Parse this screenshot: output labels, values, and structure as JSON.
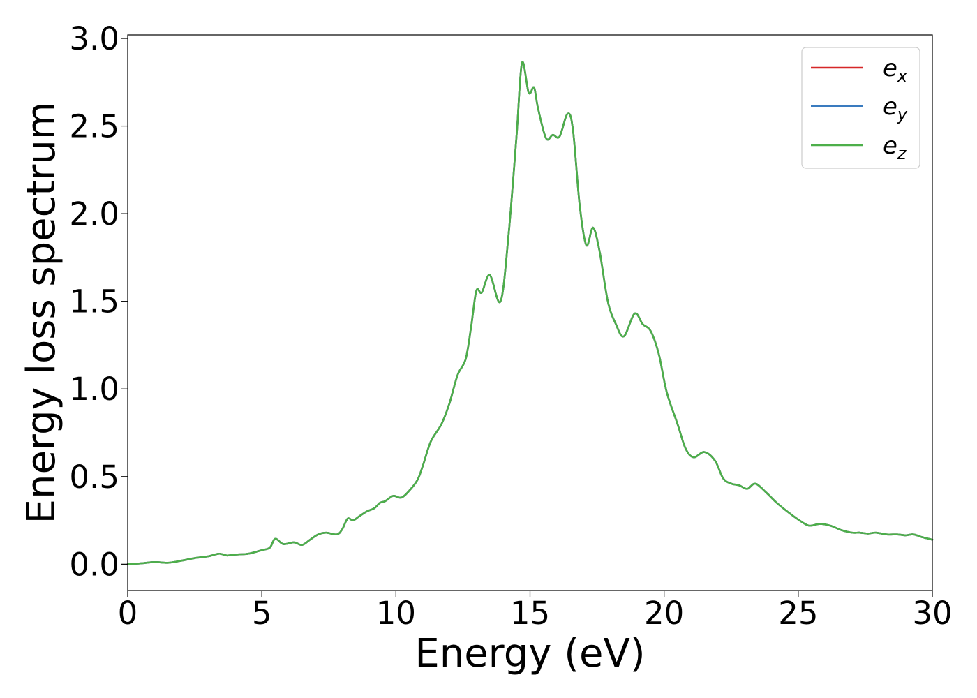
{
  "chart_data": {
    "type": "line",
    "xlabel": "Energy (eV)",
    "ylabel": "Energy loss spectrum",
    "xlim": [
      0,
      30
    ],
    "ylim": [
      -0.15,
      3.02
    ],
    "x_ticks": [
      "0",
      "5",
      "10",
      "15",
      "20",
      "25",
      "30"
    ],
    "y_ticks": [
      "0.0",
      "0.5",
      "1.0",
      "1.5",
      "2.0",
      "2.5",
      "3.0"
    ],
    "grid": false,
    "legend_position": "upper-right",
    "legend": [
      {
        "base": "e",
        "sub": "x",
        "color": "#d62728"
      },
      {
        "base": "e",
        "sub": "y",
        "color": "#3a7bbf"
      },
      {
        "base": "e",
        "sub": "z",
        "color": "#4daf4a"
      }
    ],
    "x": [
      0,
      0.5,
      1.0,
      1.5,
      2.0,
      2.5,
      3.0,
      3.4,
      3.7,
      4.0,
      4.5,
      5.0,
      5.3,
      5.5,
      5.8,
      6.2,
      6.5,
      6.8,
      7.1,
      7.4,
      7.8,
      8.0,
      8.2,
      8.4,
      8.6,
      8.9,
      9.2,
      9.4,
      9.6,
      9.9,
      10.2,
      10.5,
      10.8,
      11.0,
      11.3,
      11.7,
      12.0,
      12.3,
      12.6,
      12.8,
      13.0,
      13.2,
      13.5,
      13.9,
      14.2,
      14.5,
      14.7,
      14.95,
      15.15,
      15.3,
      15.6,
      15.85,
      16.1,
      16.4,
      16.6,
      16.85,
      17.1,
      17.35,
      17.6,
      17.9,
      18.2,
      18.5,
      18.9,
      19.2,
      19.5,
      19.8,
      20.1,
      20.5,
      20.8,
      21.1,
      21.5,
      21.9,
      22.2,
      22.5,
      22.8,
      23.1,
      23.4,
      23.8,
      24.2,
      24.6,
      25.0,
      25.4,
      25.8,
      26.2,
      26.6,
      27.0,
      27.3,
      27.6,
      27.9,
      28.3,
      28.7,
      29.0,
      29.3,
      29.6,
      30.0
    ],
    "series": [
      {
        "name": "e_x",
        "color": "#d62728",
        "values": [
          0.0,
          0.005,
          0.012,
          0.008,
          0.02,
          0.035,
          0.045,
          0.06,
          0.05,
          0.055,
          0.06,
          0.08,
          0.095,
          0.145,
          0.115,
          0.125,
          0.11,
          0.14,
          0.17,
          0.18,
          0.17,
          0.2,
          0.26,
          0.25,
          0.27,
          0.3,
          0.32,
          0.35,
          0.36,
          0.39,
          0.38,
          0.42,
          0.48,
          0.56,
          0.7,
          0.8,
          0.92,
          1.08,
          1.17,
          1.35,
          1.56,
          1.55,
          1.65,
          1.5,
          1.88,
          2.45,
          2.86,
          2.69,
          2.72,
          2.6,
          2.43,
          2.45,
          2.44,
          2.57,
          2.48,
          2.05,
          1.82,
          1.92,
          1.78,
          1.5,
          1.37,
          1.3,
          1.43,
          1.37,
          1.33,
          1.2,
          0.98,
          0.8,
          0.66,
          0.61,
          0.64,
          0.59,
          0.49,
          0.46,
          0.45,
          0.43,
          0.46,
          0.41,
          0.35,
          0.3,
          0.255,
          0.22,
          0.23,
          0.22,
          0.195,
          0.18,
          0.18,
          0.175,
          0.18,
          0.17,
          0.17,
          0.165,
          0.17,
          0.155,
          0.14
        ]
      },
      {
        "name": "e_y",
        "color": "#3a7bbf",
        "values": [
          0.0,
          0.005,
          0.012,
          0.008,
          0.02,
          0.035,
          0.045,
          0.06,
          0.05,
          0.055,
          0.06,
          0.08,
          0.095,
          0.145,
          0.115,
          0.125,
          0.11,
          0.14,
          0.17,
          0.18,
          0.17,
          0.2,
          0.26,
          0.25,
          0.27,
          0.3,
          0.32,
          0.35,
          0.36,
          0.39,
          0.38,
          0.42,
          0.48,
          0.56,
          0.7,
          0.8,
          0.92,
          1.08,
          1.17,
          1.35,
          1.56,
          1.55,
          1.65,
          1.5,
          1.88,
          2.45,
          2.86,
          2.69,
          2.72,
          2.6,
          2.43,
          2.45,
          2.44,
          2.57,
          2.48,
          2.05,
          1.82,
          1.92,
          1.78,
          1.5,
          1.37,
          1.3,
          1.43,
          1.37,
          1.33,
          1.2,
          0.98,
          0.8,
          0.66,
          0.61,
          0.64,
          0.59,
          0.49,
          0.46,
          0.45,
          0.43,
          0.46,
          0.41,
          0.35,
          0.3,
          0.255,
          0.22,
          0.23,
          0.22,
          0.195,
          0.18,
          0.18,
          0.175,
          0.18,
          0.17,
          0.17,
          0.165,
          0.17,
          0.155,
          0.14
        ]
      },
      {
        "name": "e_z",
        "color": "#4daf4a",
        "values": [
          0.0,
          0.005,
          0.012,
          0.008,
          0.02,
          0.035,
          0.045,
          0.06,
          0.05,
          0.055,
          0.06,
          0.08,
          0.095,
          0.145,
          0.115,
          0.125,
          0.11,
          0.14,
          0.17,
          0.18,
          0.17,
          0.2,
          0.26,
          0.25,
          0.27,
          0.3,
          0.32,
          0.35,
          0.36,
          0.39,
          0.38,
          0.42,
          0.48,
          0.56,
          0.7,
          0.8,
          0.92,
          1.08,
          1.17,
          1.35,
          1.56,
          1.55,
          1.65,
          1.5,
          1.88,
          2.45,
          2.86,
          2.69,
          2.72,
          2.6,
          2.43,
          2.45,
          2.44,
          2.57,
          2.48,
          2.05,
          1.82,
          1.92,
          1.78,
          1.5,
          1.37,
          1.3,
          1.43,
          1.37,
          1.33,
          1.2,
          0.98,
          0.8,
          0.66,
          0.61,
          0.64,
          0.59,
          0.49,
          0.46,
          0.45,
          0.43,
          0.46,
          0.41,
          0.35,
          0.3,
          0.255,
          0.22,
          0.23,
          0.22,
          0.195,
          0.18,
          0.18,
          0.175,
          0.18,
          0.17,
          0.17,
          0.165,
          0.17,
          0.155,
          0.14
        ]
      }
    ]
  }
}
